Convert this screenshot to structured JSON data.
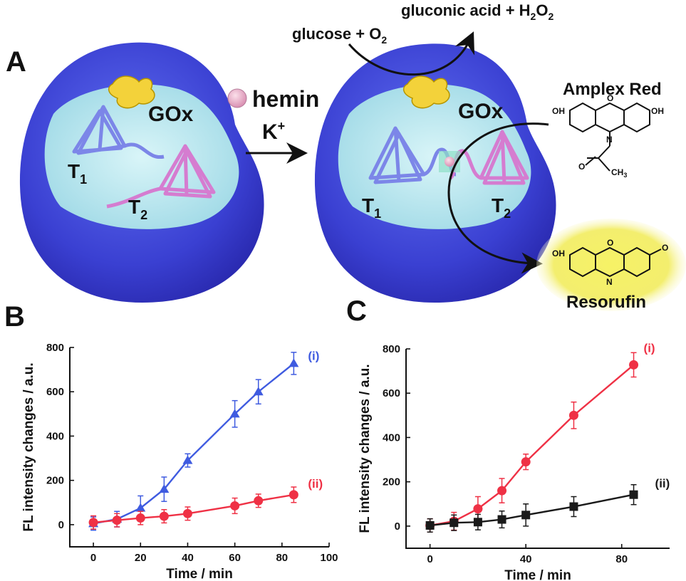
{
  "panels": {
    "a": "A",
    "b": "B",
    "c": "C"
  },
  "scheme": {
    "gox_left": "GOx",
    "gox_right": "GOx",
    "hemin": "hemin",
    "kplus_base": "K",
    "kplus_sup": "+",
    "t1": {
      "base": "T",
      "sub": "1"
    },
    "t2": {
      "base": "T",
      "sub": "2"
    },
    "glucose_base": "glucose + O",
    "glucose_sub": "2",
    "gluconic_base": "gluconic acid + H",
    "gluconic_sub1": "2",
    "gluconic_mid": "O",
    "gluconic_sub2": "2",
    "amplex_red": "Amplex Red",
    "resorufin": "Resorufin",
    "chem": {
      "oh": "OH",
      "n": "N",
      "o": "O",
      "ch3_base": "CH",
      "ch3_sub": "3"
    }
  },
  "colors": {
    "blue_series": "#3f5be0",
    "red_series": "#ef3145",
    "black_series": "#1a1a1a",
    "vesicle_outer": "#3b3fd4",
    "vesicle_inner": "#bfeaf0",
    "tetra_blue": "#7c86e8",
    "tetra_pink": "#d57cd0",
    "gox_yellow": "#f3d23a",
    "resorufin_glow": "#f2ee55"
  },
  "chart_data": [
    {
      "panel": "B",
      "type": "line",
      "xlabel": "Time / min",
      "ylabel": "FL intensity changes / a.u.",
      "xlim": [
        -10,
        100
      ],
      "ylim": [
        -100,
        800
      ],
      "xticks": [
        0,
        20,
        40,
        60,
        80,
        100
      ],
      "yticks": [
        0,
        200,
        400,
        600,
        800
      ],
      "series": [
        {
          "name": "(i)",
          "color": "#3f5be0",
          "marker": "triangle",
          "points": [
            [
              0,
              5
            ],
            [
              10,
              25
            ],
            [
              20,
              75
            ],
            [
              30,
              160
            ],
            [
              40,
              290
            ],
            [
              60,
              500
            ],
            [
              70,
              600
            ],
            [
              85,
              728
            ]
          ],
          "errors": [
            30,
            35,
            55,
            55,
            30,
            60,
            55,
            50
          ]
        },
        {
          "name": "(ii)",
          "color": "#ef3145",
          "marker": "circle",
          "points": [
            [
              0,
              10
            ],
            [
              10,
              20
            ],
            [
              20,
              30
            ],
            [
              30,
              38
            ],
            [
              40,
              50
            ],
            [
              60,
              85
            ],
            [
              70,
              108
            ],
            [
              85,
              135
            ]
          ],
          "errors": [
            30,
            30,
            30,
            30,
            30,
            35,
            30,
            35
          ]
        }
      ]
    },
    {
      "panel": "C",
      "type": "line",
      "xlabel": "Time / min",
      "ylabel": "FL intensity changes / a.u.",
      "xlim": [
        -10,
        100
      ],
      "ylim": [
        -100,
        800
      ],
      "xticks": [
        0,
        40,
        80
      ],
      "yticks": [
        0,
        200,
        400,
        600,
        800
      ],
      "series": [
        {
          "name": "(i)",
          "color": "#ef3145",
          "marker": "circle",
          "points": [
            [
              0,
              3
            ],
            [
              10,
              22
            ],
            [
              20,
              78
            ],
            [
              30,
              160
            ],
            [
              40,
              290
            ],
            [
              60,
              500
            ],
            [
              85,
              728
            ]
          ],
          "errors": [
            30,
            40,
            55,
            55,
            35,
            60,
            55
          ]
        },
        {
          "name": "(ii)",
          "color": "#1a1a1a",
          "marker": "square",
          "points": [
            [
              0,
              3
            ],
            [
              10,
              15
            ],
            [
              20,
              18
            ],
            [
              30,
              30
            ],
            [
              40,
              50
            ],
            [
              60,
              88
            ],
            [
              85,
              142
            ]
          ],
          "errors": [
            30,
            35,
            35,
            38,
            50,
            45,
            45
          ]
        }
      ]
    }
  ]
}
